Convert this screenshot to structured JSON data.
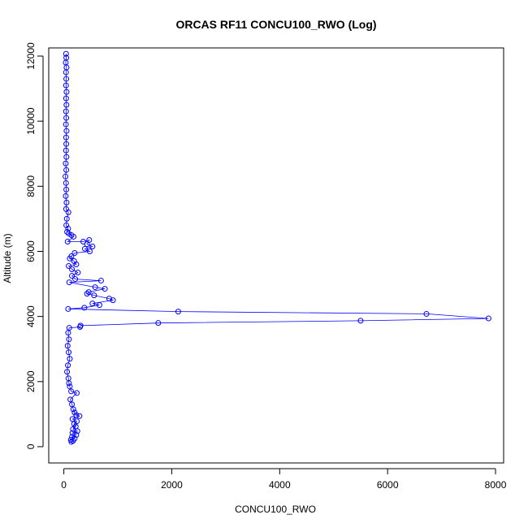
{
  "chart_data": {
    "type": "scatter",
    "title": "ORCAS RF11 CONCU100_RWO (Log)",
    "xlabel": "CONCU100_RWO",
    "ylabel": "Altitude (m)",
    "xlim": [
      -280,
      8150
    ],
    "ylim": [
      -500,
      12250
    ],
    "x_ticks": [
      0,
      2000,
      4000,
      6000,
      8000
    ],
    "y_ticks": [
      0,
      2000,
      4000,
      6000,
      8000,
      10000,
      12000
    ],
    "grid": false,
    "legend": "none",
    "colors": {
      "series": "#0000ff",
      "axes": "#000000",
      "background": "#ffffff"
    },
    "series": [
      {
        "style": "points-and-lines",
        "points": [
          [
            40,
            12070
          ],
          [
            45,
            11950
          ],
          [
            35,
            11800
          ],
          [
            50,
            11650
          ],
          [
            40,
            11500
          ],
          [
            45,
            11300
          ],
          [
            40,
            11100
          ],
          [
            50,
            10900
          ],
          [
            42,
            10700
          ],
          [
            48,
            10500
          ],
          [
            40,
            10300
          ],
          [
            45,
            10100
          ],
          [
            38,
            9900
          ],
          [
            50,
            9700
          ],
          [
            42,
            9500
          ],
          [
            45,
            9300
          ],
          [
            40,
            9100
          ],
          [
            48,
            8900
          ],
          [
            35,
            8700
          ],
          [
            45,
            8500
          ],
          [
            30,
            8300
          ],
          [
            40,
            8100
          ],
          [
            45,
            7900
          ],
          [
            35,
            7700
          ],
          [
            50,
            7500
          ],
          [
            42,
            7300
          ],
          [
            85,
            7200
          ],
          [
            55,
            7000
          ],
          [
            45,
            6800
          ],
          [
            80,
            6700
          ],
          [
            60,
            6600
          ],
          [
            140,
            6500
          ],
          [
            90,
            6550
          ],
          [
            180,
            6450
          ],
          [
            70,
            6300
          ],
          [
            360,
            6300
          ],
          [
            470,
            6350
          ],
          [
            430,
            6220
          ],
          [
            530,
            6150
          ],
          [
            390,
            6080
          ],
          [
            480,
            6000
          ],
          [
            200,
            5950
          ],
          [
            140,
            5850
          ],
          [
            110,
            5780
          ],
          [
            190,
            5700
          ],
          [
            230,
            5600
          ],
          [
            90,
            5550
          ],
          [
            150,
            5450
          ],
          [
            260,
            5350
          ],
          [
            150,
            5250
          ],
          [
            210,
            5150
          ],
          [
            690,
            5100
          ],
          [
            100,
            5050
          ],
          [
            580,
            4900
          ],
          [
            760,
            4850
          ],
          [
            460,
            4750
          ],
          [
            430,
            4700
          ],
          [
            560,
            4650
          ],
          [
            840,
            4550
          ],
          [
            910,
            4500
          ],
          [
            530,
            4400
          ],
          [
            660,
            4350
          ],
          [
            380,
            4270
          ],
          [
            80,
            4230
          ],
          [
            2120,
            4150
          ],
          [
            6720,
            4080
          ],
          [
            7870,
            3940
          ],
          [
            5500,
            3870
          ],
          [
            1750,
            3800
          ],
          [
            310,
            3720
          ],
          [
            300,
            3680
          ],
          [
            100,
            3650
          ],
          [
            80,
            3500
          ],
          [
            95,
            3300
          ],
          [
            70,
            3100
          ],
          [
            90,
            2900
          ],
          [
            110,
            2700
          ],
          [
            75,
            2500
          ],
          [
            60,
            2300
          ],
          [
            85,
            2100
          ],
          [
            95,
            1950
          ],
          [
            110,
            1850
          ],
          [
            135,
            1700
          ],
          [
            240,
            1650
          ],
          [
            120,
            1450
          ],
          [
            150,
            1300
          ],
          [
            175,
            1150
          ],
          [
            200,
            1050
          ],
          [
            230,
            970
          ],
          [
            290,
            940
          ],
          [
            160,
            850
          ],
          [
            240,
            780
          ],
          [
            190,
            700
          ],
          [
            220,
            620
          ],
          [
            170,
            540
          ],
          [
            250,
            480
          ],
          [
            160,
            420
          ],
          [
            230,
            360
          ],
          [
            150,
            300
          ],
          [
            200,
            250
          ],
          [
            130,
            210
          ],
          [
            170,
            180
          ],
          [
            140,
            150
          ]
        ]
      }
    ]
  }
}
